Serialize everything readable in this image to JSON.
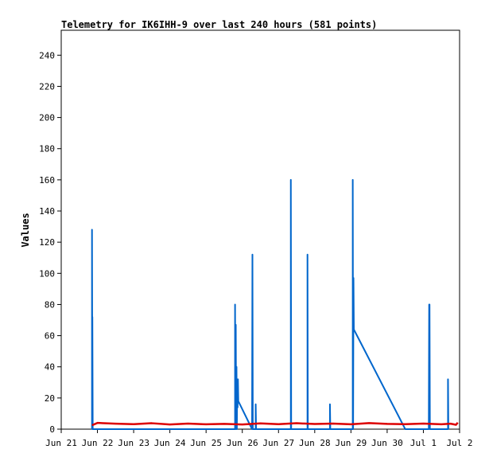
{
  "chart_data": {
    "type": "line",
    "title": "Telemetry for IK6IHH-9 over last 240 hours (581 points)",
    "ylabel": "Values",
    "xlabel": "",
    "x_unit": "day",
    "x_ticks": [
      "Jun 21",
      "Jun 22",
      "Jun 23",
      "Jun 24",
      "Jun 25",
      "Jun 26",
      "Jun 27",
      "Jun 28",
      "Jun 29",
      "Jun 30",
      "Jul 1",
      "Jul 2"
    ],
    "x_range": [
      "Jun 21",
      "Jul 2"
    ],
    "y_ticks": [
      0,
      20,
      40,
      60,
      80,
      100,
      120,
      140,
      160,
      180,
      200,
      220,
      240
    ],
    "ylim": [
      0,
      256
    ],
    "grid": false,
    "legend": "none",
    "series": [
      {
        "color": "#0066cc",
        "points": [
          [
            0.85,
            0
          ],
          [
            0.85,
            128
          ],
          [
            0.86,
            0
          ],
          [
            0.86,
            72
          ],
          [
            0.87,
            0
          ],
          [
            4.8,
            0
          ],
          [
            4.8,
            80
          ],
          [
            4.81,
            0
          ],
          [
            4.82,
            67
          ],
          [
            4.83,
            0
          ],
          [
            4.84,
            40
          ],
          [
            4.85,
            0
          ],
          [
            4.86,
            32
          ],
          [
            4.87,
            14
          ],
          [
            4.88,
            32
          ],
          [
            4.89,
            18
          ],
          [
            5.27,
            0
          ],
          [
            5.28,
            112
          ],
          [
            5.29,
            0
          ],
          [
            5.37,
            0
          ],
          [
            5.37,
            16
          ],
          [
            5.38,
            0
          ],
          [
            6.34,
            0
          ],
          [
            6.34,
            160
          ],
          [
            6.35,
            0
          ],
          [
            6.8,
            0
          ],
          [
            6.8,
            112
          ],
          [
            6.81,
            0
          ],
          [
            7.42,
            0
          ],
          [
            7.42,
            16
          ],
          [
            7.43,
            0
          ],
          [
            8.05,
            0
          ],
          [
            8.05,
            160
          ],
          [
            8.06,
            0
          ],
          [
            8.07,
            97
          ],
          [
            8.08,
            64
          ],
          [
            9.5,
            0
          ],
          [
            10.15,
            0
          ],
          [
            10.16,
            80
          ],
          [
            10.17,
            80
          ],
          [
            10.18,
            0
          ],
          [
            10.68,
            0
          ],
          [
            10.68,
            32
          ],
          [
            10.69,
            0
          ]
        ]
      },
      {
        "color": "#dd0000",
        "points": [
          [
            0.85,
            2.5
          ],
          [
            1.0,
            4.0
          ],
          [
            1.5,
            3.5
          ],
          [
            2.0,
            3.2
          ],
          [
            2.5,
            3.8
          ],
          [
            3.0,
            3.0
          ],
          [
            3.5,
            3.6
          ],
          [
            4.0,
            3.1
          ],
          [
            4.5,
            3.4
          ],
          [
            5.0,
            3.0
          ],
          [
            5.5,
            3.7
          ],
          [
            6.0,
            3.2
          ],
          [
            6.5,
            3.8
          ],
          [
            7.0,
            3.3
          ],
          [
            7.5,
            3.6
          ],
          [
            8.0,
            3.1
          ],
          [
            8.5,
            3.9
          ],
          [
            9.0,
            3.4
          ],
          [
            9.5,
            3.2
          ],
          [
            10.0,
            3.6
          ],
          [
            10.5,
            3.1
          ],
          [
            10.75,
            3.5
          ],
          [
            10.9,
            2.8
          ],
          [
            10.95,
            4.2
          ]
        ]
      }
    ]
  }
}
